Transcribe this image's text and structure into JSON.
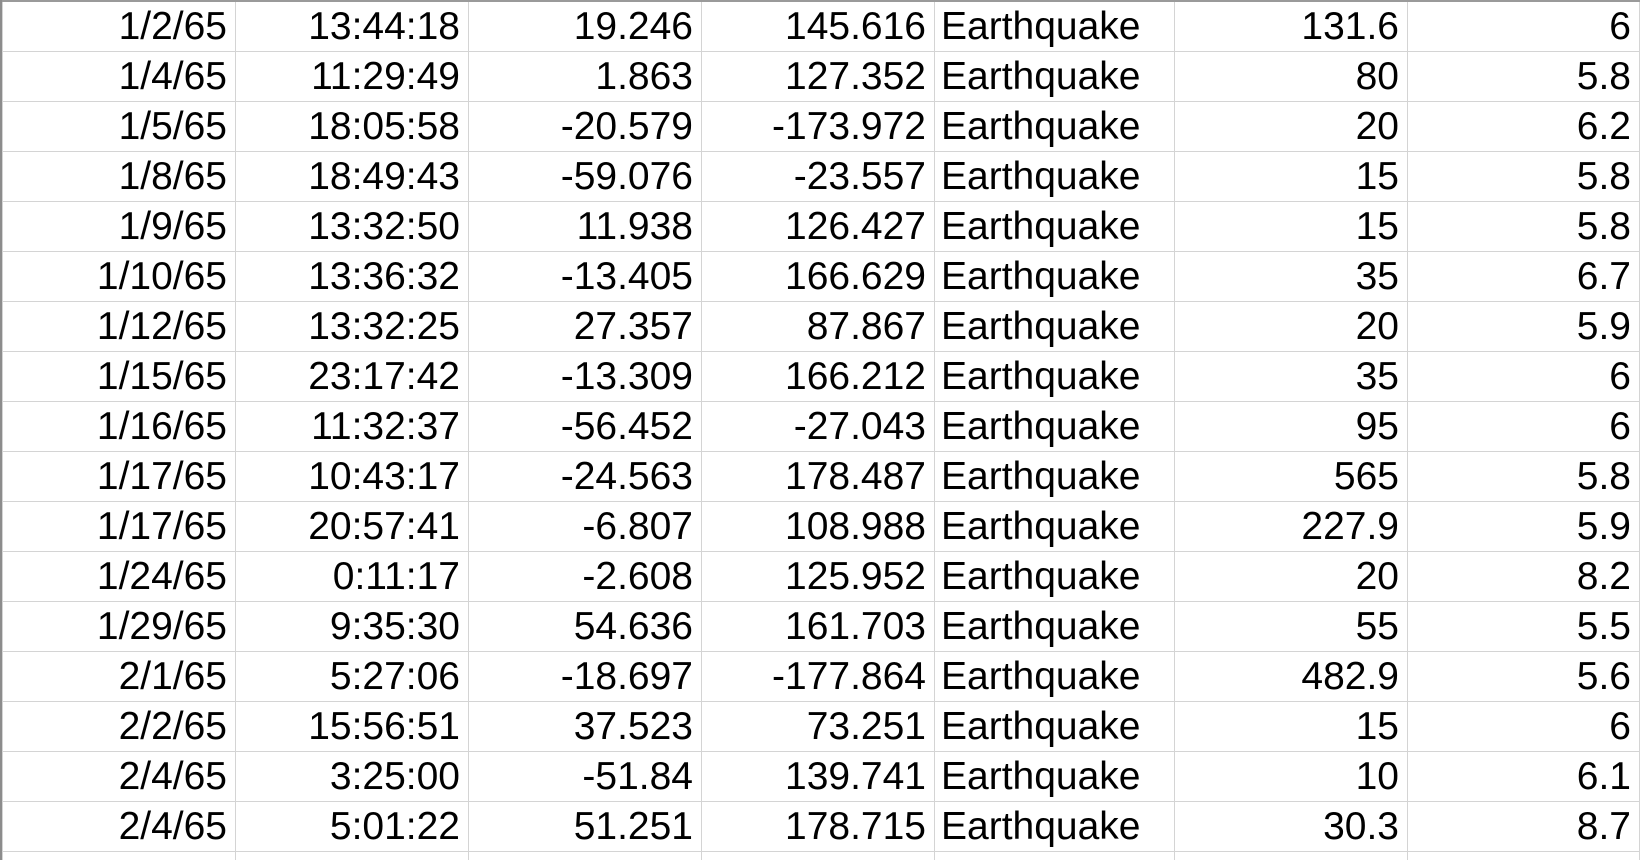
{
  "rows": [
    {
      "date": "1/2/65",
      "time": "13:44:18",
      "latitude": "19.246",
      "longitude": "145.616",
      "type": "Earthquake",
      "depth": "131.6",
      "magnitude": "6"
    },
    {
      "date": "1/4/65",
      "time": "11:29:49",
      "latitude": "1.863",
      "longitude": "127.352",
      "type": "Earthquake",
      "depth": "80",
      "magnitude": "5.8"
    },
    {
      "date": "1/5/65",
      "time": "18:05:58",
      "latitude": "-20.579",
      "longitude": "-173.972",
      "type": "Earthquake",
      "depth": "20",
      "magnitude": "6.2"
    },
    {
      "date": "1/8/65",
      "time": "18:49:43",
      "latitude": "-59.076",
      "longitude": "-23.557",
      "type": "Earthquake",
      "depth": "15",
      "magnitude": "5.8"
    },
    {
      "date": "1/9/65",
      "time": "13:32:50",
      "latitude": "11.938",
      "longitude": "126.427",
      "type": "Earthquake",
      "depth": "15",
      "magnitude": "5.8"
    },
    {
      "date": "1/10/65",
      "time": "13:36:32",
      "latitude": "-13.405",
      "longitude": "166.629",
      "type": "Earthquake",
      "depth": "35",
      "magnitude": "6.7"
    },
    {
      "date": "1/12/65",
      "time": "13:32:25",
      "latitude": "27.357",
      "longitude": "87.867",
      "type": "Earthquake",
      "depth": "20",
      "magnitude": "5.9"
    },
    {
      "date": "1/15/65",
      "time": "23:17:42",
      "latitude": "-13.309",
      "longitude": "166.212",
      "type": "Earthquake",
      "depth": "35",
      "magnitude": "6"
    },
    {
      "date": "1/16/65",
      "time": "11:32:37",
      "latitude": "-56.452",
      "longitude": "-27.043",
      "type": "Earthquake",
      "depth": "95",
      "magnitude": "6"
    },
    {
      "date": "1/17/65",
      "time": "10:43:17",
      "latitude": "-24.563",
      "longitude": "178.487",
      "type": "Earthquake",
      "depth": "565",
      "magnitude": "5.8"
    },
    {
      "date": "1/17/65",
      "time": "20:57:41",
      "latitude": "-6.807",
      "longitude": "108.988",
      "type": "Earthquake",
      "depth": "227.9",
      "magnitude": "5.9"
    },
    {
      "date": "1/24/65",
      "time": "0:11:17",
      "latitude": "-2.608",
      "longitude": "125.952",
      "type": "Earthquake",
      "depth": "20",
      "magnitude": "8.2"
    },
    {
      "date": "1/29/65",
      "time": "9:35:30",
      "latitude": "54.636",
      "longitude": "161.703",
      "type": "Earthquake",
      "depth": "55",
      "magnitude": "5.5"
    },
    {
      "date": "2/1/65",
      "time": "5:27:06",
      "latitude": "-18.697",
      "longitude": "-177.864",
      "type": "Earthquake",
      "depth": "482.9",
      "magnitude": "5.6"
    },
    {
      "date": "2/2/65",
      "time": "15:56:51",
      "latitude": "37.523",
      "longitude": "73.251",
      "type": "Earthquake",
      "depth": "15",
      "magnitude": "6"
    },
    {
      "date": "2/4/65",
      "time": "3:25:00",
      "latitude": "-51.84",
      "longitude": "139.741",
      "type": "Earthquake",
      "depth": "10",
      "magnitude": "6.1"
    },
    {
      "date": "2/4/65",
      "time": "5:01:22",
      "latitude": "51.251",
      "longitude": "178.715",
      "type": "Earthquake",
      "depth": "30.3",
      "magnitude": "8.7"
    }
  ]
}
